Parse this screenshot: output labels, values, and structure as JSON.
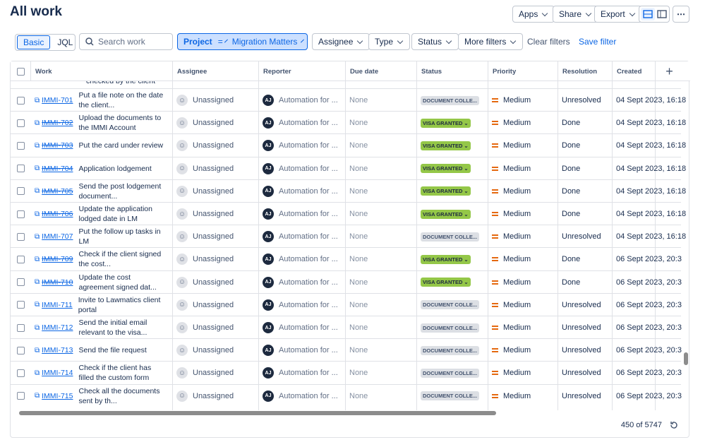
{
  "header": {
    "title": "All work",
    "buttons": [
      "Apps",
      "Share",
      "Export"
    ]
  },
  "filters": {
    "modes": [
      "Basic",
      "JQL"
    ],
    "search": "Search work",
    "project": {
      "label": "Project",
      "operator": "=",
      "value": "Migration Matters"
    },
    "dropdowns": [
      "Assignee",
      "Type",
      "Status",
      "More filters"
    ],
    "clear": "Clear filters",
    "save": "Save filter"
  },
  "table": {
    "columns": [
      "Work",
      "Assignee",
      "Reporter",
      "Due date",
      "Status",
      "Priority",
      "Resolution",
      "Created"
    ],
    "partial_row": "checked by the client",
    "rows": [
      {
        "key": "IMMI-701",
        "done": false,
        "summary": "Put a file note on the date the client...",
        "assignee": "Unassigned",
        "reporter_initials": "AJ",
        "reporter": "Automation for ...",
        "due": "None",
        "status": "DOCUMENT COLLE...",
        "priority": "Medium",
        "resolution": "Unresolved",
        "created": "04 Sept 2023, 16:18"
      },
      {
        "key": "IMMI-702",
        "done": true,
        "summary": "Upload the documents to the IMMI Account",
        "assignee": "Unassigned",
        "reporter_initials": "AJ",
        "reporter": "Automation for ...",
        "due": "None",
        "status": "VISA GRANTED",
        "priority": "Medium",
        "resolution": "Done",
        "created": "04 Sept 2023, 16:18"
      },
      {
        "key": "IMMI-703",
        "done": true,
        "summary": "Put the card under review",
        "assignee": "Unassigned",
        "reporter_initials": "AJ",
        "reporter": "Automation for ...",
        "due": "None",
        "status": "VISA GRANTED",
        "priority": "Medium",
        "resolution": "Done",
        "created": "04 Sept 2023, 16:18"
      },
      {
        "key": "IMMI-704",
        "done": true,
        "summary": "Application lodgement",
        "assignee": "Unassigned",
        "reporter_initials": "AJ",
        "reporter": "Automation for ...",
        "due": "None",
        "status": "VISA GRANTED",
        "priority": "Medium",
        "resolution": "Done",
        "created": "04 Sept 2023, 16:18"
      },
      {
        "key": "IMMI-705",
        "done": true,
        "summary": "Send the post lodgement document...",
        "assignee": "Unassigned",
        "reporter_initials": "AJ",
        "reporter": "Automation for ...",
        "due": "None",
        "status": "VISA GRANTED",
        "priority": "Medium",
        "resolution": "Done",
        "created": "04 Sept 2023, 16:18"
      },
      {
        "key": "IMMI-706",
        "done": true,
        "summary": "Update the application lodged date in LM",
        "assignee": "Unassigned",
        "reporter_initials": "AJ",
        "reporter": "Automation for ...",
        "due": "None",
        "status": "VISA GRANTED",
        "priority": "Medium",
        "resolution": "Done",
        "created": "04 Sept 2023, 16:18"
      },
      {
        "key": "IMMI-707",
        "done": false,
        "summary": "Put the follow up tasks in LM",
        "assignee": "Unassigned",
        "reporter_initials": "AJ",
        "reporter": "Automation for ...",
        "due": "None",
        "status": "DOCUMENT COLLE...",
        "priority": "Medium",
        "resolution": "Unresolved",
        "created": "04 Sept 2023, 16:18"
      },
      {
        "key": "IMMI-709",
        "done": true,
        "summary": "Check if the client signed the cost...",
        "assignee": "Unassigned",
        "reporter_initials": "AJ",
        "reporter": "Automation for ...",
        "due": "None",
        "status": "VISA GRANTED",
        "priority": "Medium",
        "resolution": "Done",
        "created": "06 Sept 2023, 20:3"
      },
      {
        "key": "IMMI-710",
        "done": true,
        "summary": "Update the cost agreement signed dat...",
        "assignee": "Unassigned",
        "reporter_initials": "AJ",
        "reporter": "Automation for ...",
        "due": "None",
        "status": "VISA GRANTED",
        "priority": "Medium",
        "resolution": "Done",
        "created": "06 Sept 2023, 20:3"
      },
      {
        "key": "IMMI-711",
        "done": false,
        "summary": "Invite to Lawmatics client portal",
        "assignee": "Unassigned",
        "reporter_initials": "AJ",
        "reporter": "Automation for ...",
        "due": "None",
        "status": "DOCUMENT COLLE...",
        "priority": "Medium",
        "resolution": "Unresolved",
        "created": "06 Sept 2023, 20:3"
      },
      {
        "key": "IMMI-712",
        "done": false,
        "summary": "Send the initial email relevant to the visa...",
        "assignee": "Unassigned",
        "reporter_initials": "AJ",
        "reporter": "Automation for ...",
        "due": "None",
        "status": "DOCUMENT COLLE...",
        "priority": "Medium",
        "resolution": "Unresolved",
        "created": "06 Sept 2023, 20:3"
      },
      {
        "key": "IMMI-713",
        "done": false,
        "summary": "Send the file request",
        "assignee": "Unassigned",
        "reporter_initials": "AJ",
        "reporter": "Automation for ...",
        "due": "None",
        "status": "DOCUMENT COLLE...",
        "priority": "Medium",
        "resolution": "Unresolved",
        "created": "06 Sept 2023, 20:3"
      },
      {
        "key": "IMMI-714",
        "done": false,
        "summary": "Check if the client has filled the custom form",
        "assignee": "Unassigned",
        "reporter_initials": "AJ",
        "reporter": "Automation for ...",
        "due": "None",
        "status": "DOCUMENT COLLE...",
        "priority": "Medium",
        "resolution": "Unresolved",
        "created": "06 Sept 2023, 20:3"
      },
      {
        "key": "IMMI-715",
        "done": false,
        "summary": "Check all the documents sent by th...",
        "assignee": "Unassigned",
        "reporter_initials": "AJ",
        "reporter": "Automation for ...",
        "due": "None",
        "status": "DOCUMENT COLLE...",
        "priority": "Medium",
        "resolution": "Unresolved",
        "created": "06 Sept 2023, 20:3"
      }
    ]
  },
  "footer": {
    "count": "450 of 5747"
  }
}
